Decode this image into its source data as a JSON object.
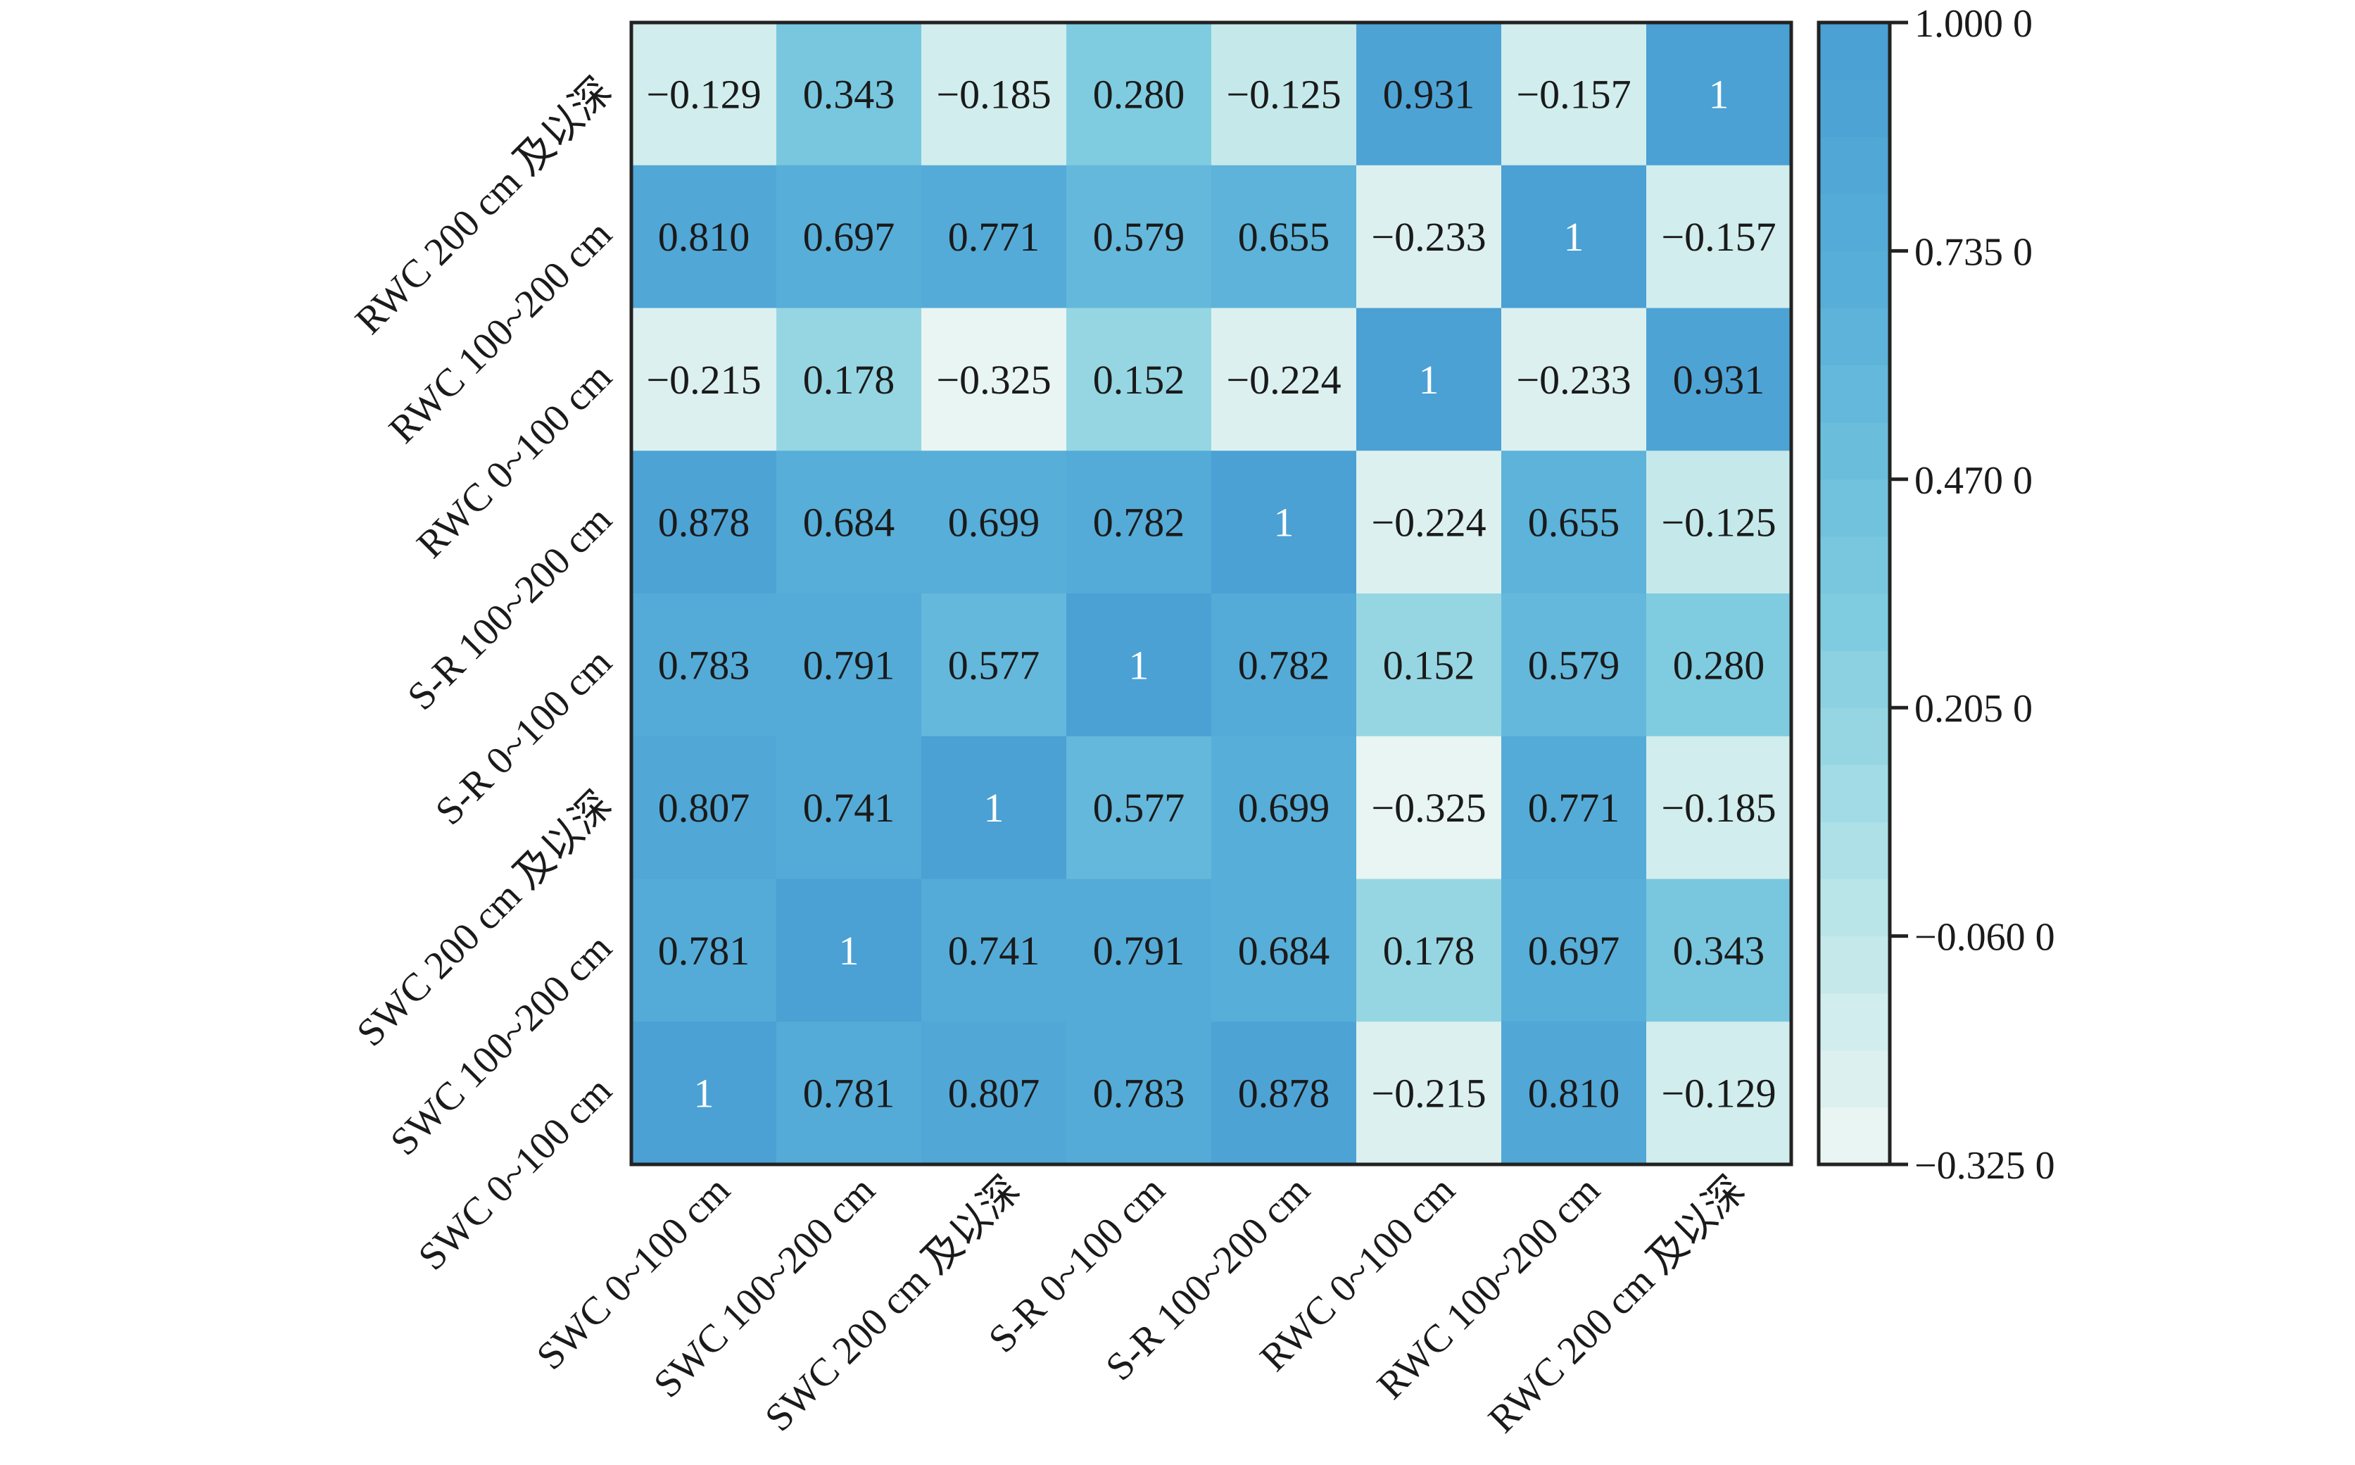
{
  "chart_data": {
    "type": "heatmap",
    "title": "",
    "xlabel": "",
    "ylabel": "",
    "x_categories": [
      "SWC 0~100 cm",
      "SWC 100~200 cm",
      "SWC 200 cm 及以深",
      "S-R 0~100 cm",
      "S-R 100~200 cm",
      "RWC 0~100 cm",
      "RWC 100~200 cm",
      "RWC 200 cm 及以深"
    ],
    "y_categories_top_to_bottom": [
      "RWC 200 cm 及以深",
      "RWC 100~200 cm",
      "RWC 0~100 cm",
      "S-R 100~200 cm",
      "S-R 0~100 cm",
      "SWC 200 cm 及以深",
      "SWC 100~200 cm",
      "SWC 0~100 cm"
    ],
    "values_top_to_bottom": [
      [
        "−0.129",
        "0.343",
        "−0.185",
        "0.280",
        "−0.125",
        "0.931",
        "−0.157",
        "1"
      ],
      [
        "0.810",
        "0.697",
        "0.771",
        "0.579",
        "0.655",
        "−0.233",
        "1",
        "−0.157"
      ],
      [
        "−0.215",
        "0.178",
        "−0.325",
        "0.152",
        "−0.224",
        "1",
        "−0.233",
        "0.931"
      ],
      [
        "0.878",
        "0.684",
        "0.699",
        "0.782",
        "1",
        "−0.224",
        "0.655",
        "−0.125"
      ],
      [
        "0.783",
        "0.791",
        "0.577",
        "1",
        "0.782",
        "0.152",
        "0.579",
        "0.280"
      ],
      [
        "0.807",
        "0.741",
        "1",
        "0.577",
        "0.699",
        "−0.325",
        "0.771",
        "−0.185"
      ],
      [
        "0.781",
        "1",
        "0.741",
        "0.791",
        "0.684",
        "0.178",
        "0.697",
        "0.343"
      ],
      [
        "1",
        "0.781",
        "0.807",
        "0.783",
        "0.878",
        "−0.215",
        "0.810",
        "−0.129"
      ]
    ],
    "colorbar": {
      "range": [
        -0.325,
        1.0
      ],
      "ticks": [
        1.0,
        0.735,
        0.47,
        0.205,
        -0.06,
        -0.325
      ],
      "tick_labels": [
        "1.000 0",
        "0.735 0",
        "0.470 0",
        "0.205 0",
        "−0.060 0",
        "−0.325 0"
      ],
      "bands": 20,
      "color_low": "#eef7f3",
      "color_mid_low": "#bfe7e9",
      "color_mid": "#7ecbe0",
      "color_mid_high": "#56aed8",
      "color_high": "#4a9ed3"
    },
    "diagonal_text_color": "#ffffff",
    "text_color": "#1a1a1a",
    "grid": false,
    "legend": "colorbar-right"
  }
}
